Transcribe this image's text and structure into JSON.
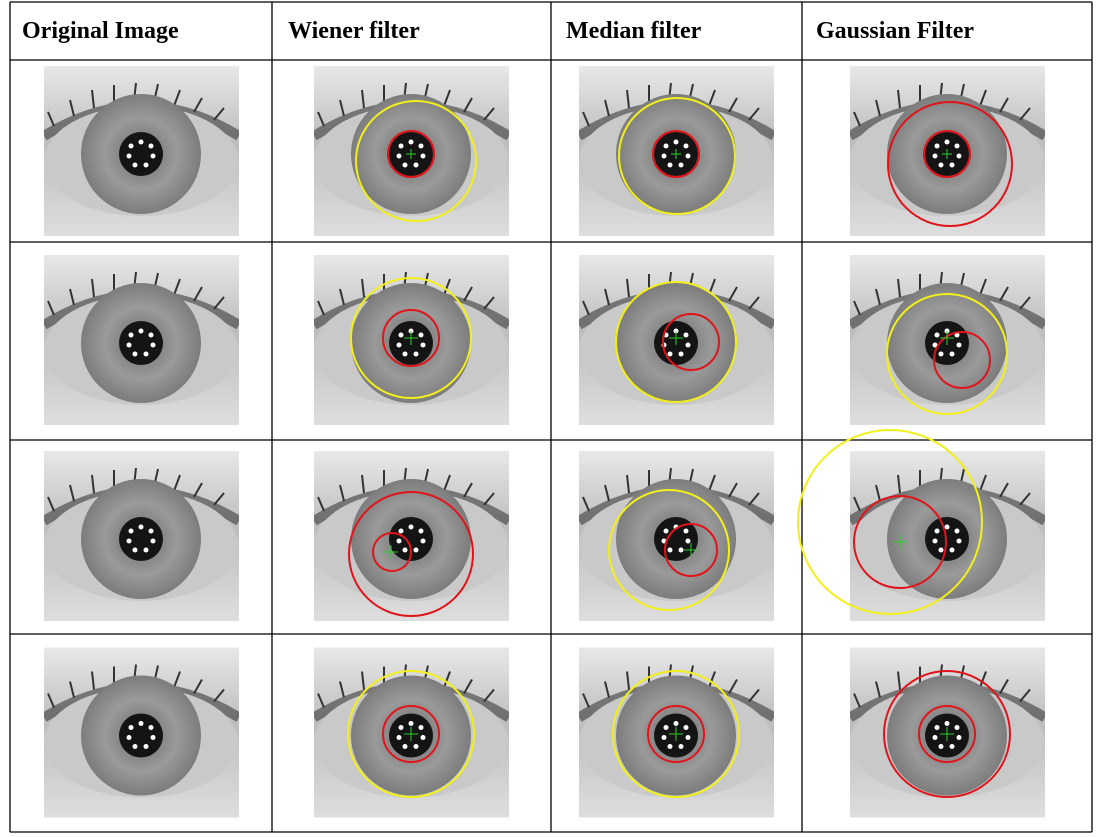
{
  "table": {
    "header": [
      "Original Image",
      "Wiener filter",
      "Median filter",
      "Gaussian Filter"
    ]
  }
}
